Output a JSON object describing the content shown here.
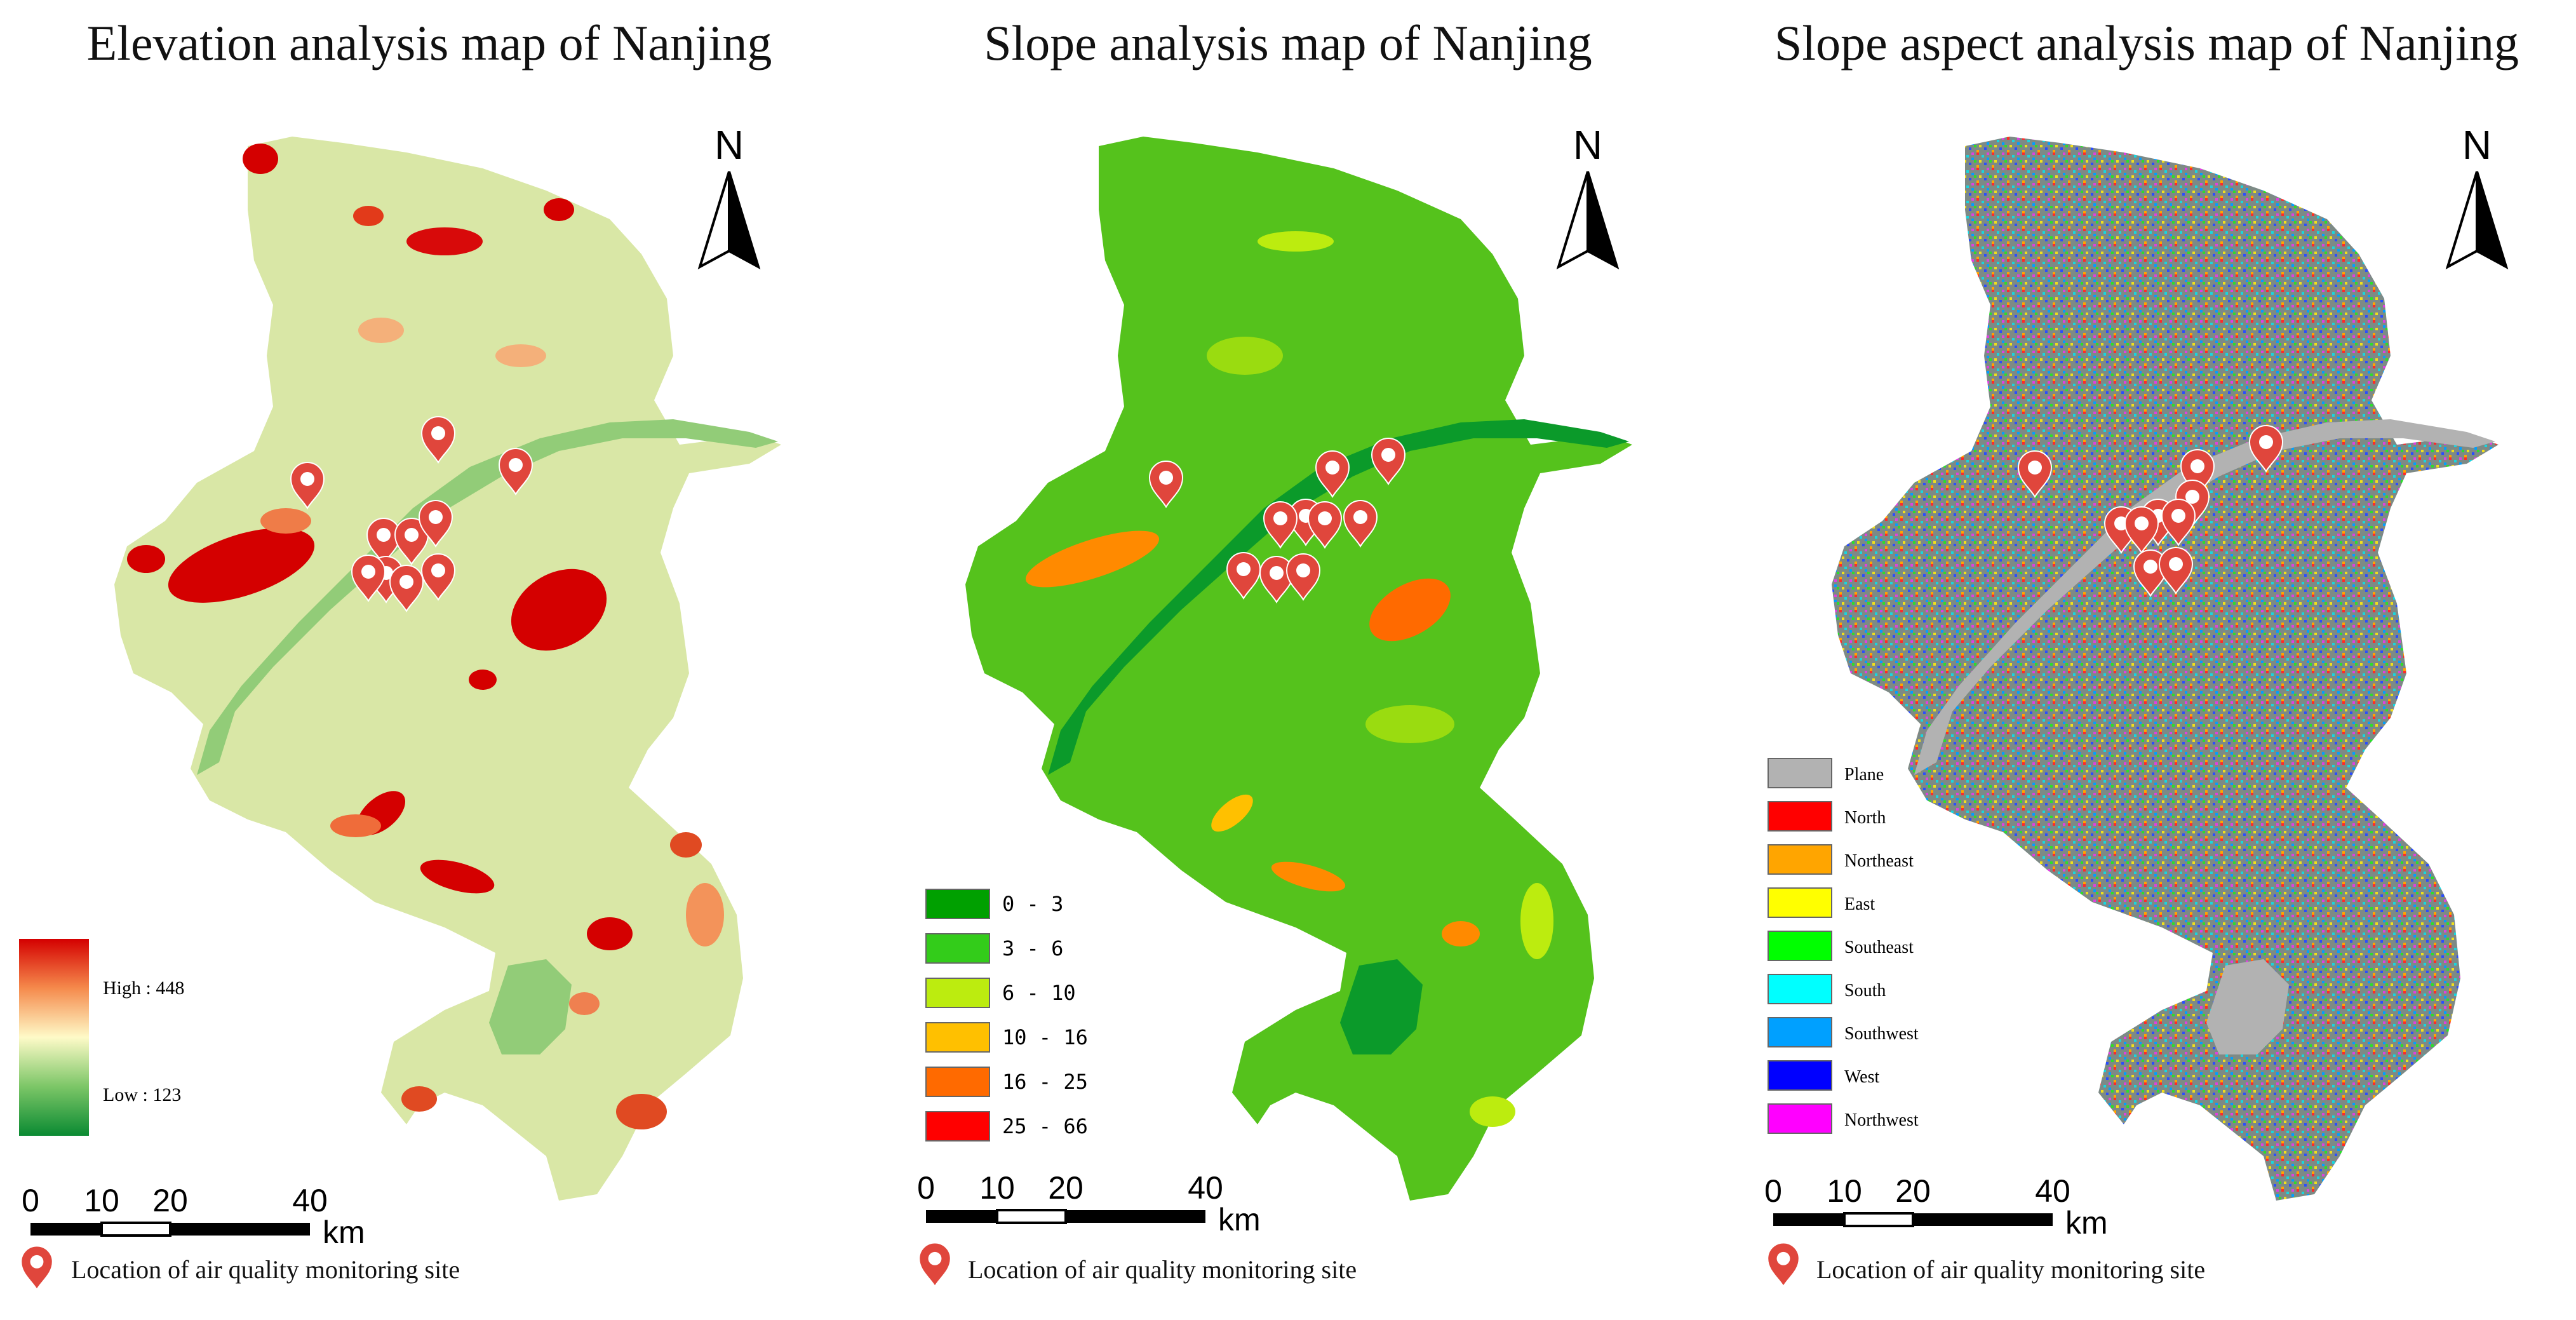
{
  "maps": [
    {
      "title": "Elevation analysis map of Nanjing",
      "north": "N",
      "legend": {
        "type": "gradient",
        "high_label": "High : 448",
        "low_label": "Low : 123",
        "colors": [
          "#d40000",
          "#f58a4c",
          "#fefac8",
          "#7cc667",
          "#0a8a32"
        ]
      },
      "base_color": "#d9e7a6",
      "river_color": "#92cc78",
      "scale": {
        "ticks": [
          "0",
          "10",
          "20",
          "40"
        ],
        "unit": "km"
      },
      "site_label": "Location of air quality monitoring site"
    },
    {
      "title": "Slope analysis map of Nanjing",
      "north": "N",
      "legend": {
        "type": "classes",
        "items": [
          {
            "label": "0 - 3",
            "color": "#00a000"
          },
          {
            "label": "3 - 6",
            "color": "#33cc1a"
          },
          {
            "label": "6 - 10",
            "color": "#bcec0f"
          },
          {
            "label": "10 - 16",
            "color": "#ffc000"
          },
          {
            "label": "16 - 25",
            "color": "#ff6a00"
          },
          {
            "label": "25 - 66",
            "color": "#ff0000"
          }
        ]
      },
      "base_color": "#55c21c",
      "river_color": "#0b9a2a",
      "scale": {
        "ticks": [
          "0",
          "10",
          "20",
          "40"
        ],
        "unit": "km"
      },
      "site_label": "Location of air quality monitoring site"
    },
    {
      "title": "Slope aspect analysis map of Nanjing",
      "north": "N",
      "legend": {
        "type": "classes",
        "items": [
          {
            "label": "Plane",
            "color": "#b2b2b2"
          },
          {
            "label": "North",
            "color": "#ff0000"
          },
          {
            "label": "Northeast",
            "color": "#ffa500"
          },
          {
            "label": "East",
            "color": "#ffff00"
          },
          {
            "label": "Southeast",
            "color": "#00ff00"
          },
          {
            "label": "South",
            "color": "#00ffff"
          },
          {
            "label": "Southwest",
            "color": "#00a0ff"
          },
          {
            "label": "West",
            "color": "#0000ff"
          },
          {
            "label": "Northwest",
            "color": "#ff00ff"
          }
        ]
      },
      "base_color": "#7d8a86",
      "river_color": "#b2b2b2",
      "scale": {
        "ticks": [
          "0",
          "10",
          "20",
          "40"
        ],
        "unit": "km"
      },
      "site_label": "Location of air quality monitoring site"
    }
  ],
  "marker_color": "#e0463c"
}
